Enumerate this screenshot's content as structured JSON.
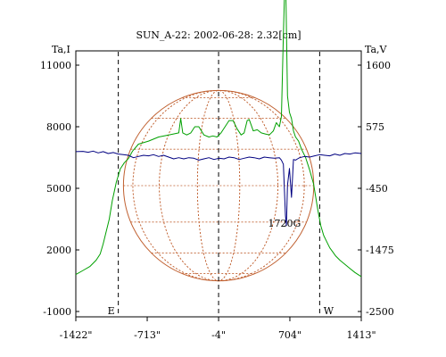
{
  "chart_data": {
    "type": "line",
    "title": "SUN_A-22: 2002-06-28: 2.32[cm]",
    "left_axis": {
      "label": "Ta,I",
      "range": [
        -1000,
        11000
      ],
      "ticks": [
        11000,
        8000,
        5000,
        2000,
        -1000
      ],
      "tick_labels": [
        "11000",
        "8000",
        "5000",
        "2000",
        "-1000"
      ]
    },
    "right_axis": {
      "label": "Ta,V",
      "range": [
        -2500,
        1600
      ],
      "ticks": [
        1600,
        575,
        -450,
        -1475,
        -2500
      ],
      "tick_labels": [
        "1600",
        "575",
        "-450",
        "-1475",
        "-2500"
      ]
    },
    "x_axis": {
      "range": [
        -1422,
        1413
      ],
      "ticks": [
        -1422,
        -713,
        -4,
        704,
        1413
      ],
      "tick_labels": [
        "-1422\"",
        "-713\"",
        "-4\"",
        "704\"",
        "1413\""
      ]
    },
    "vertical_markers": [
      {
        "x": -1000,
        "label": "E"
      },
      {
        "x": -4,
        "label": ""
      },
      {
        "x": 1000,
        "label": "W"
      }
    ],
    "disk": {
      "center_x": -4,
      "radius_arcsec": 945
    },
    "annotations": [
      {
        "text": "1720G",
        "x": 650,
        "y": 3300
      }
    ],
    "series": [
      {
        "axis": "left",
        "color": "#00a000",
        "x": [
          -1422,
          -1350,
          -1280,
          -1220,
          -1180,
          -1150,
          -1120,
          -1090,
          -1060,
          -1020,
          -980,
          -940,
          -900,
          -860,
          -800,
          -700,
          -600,
          -500,
          -400,
          -380,
          -360,
          -320,
          -280,
          -240,
          -200,
          -150,
          -100,
          -60,
          -20,
          20,
          60,
          100,
          140,
          180,
          220,
          250,
          280,
          300,
          340,
          380,
          420,
          460,
          500,
          540,
          570,
          600,
          620,
          640,
          655,
          665,
          680,
          700,
          720,
          740,
          760,
          790,
          820,
          860,
          900,
          940,
          980,
          1010,
          1040,
          1070,
          1100,
          1130,
          1160,
          1200,
          1250,
          1300,
          1350,
          1413
        ],
        "y": [
          800,
          1000,
          1200,
          1500,
          1800,
          2300,
          2900,
          3500,
          4400,
          5300,
          5950,
          6250,
          6450,
          6800,
          7150,
          7300,
          7500,
          7600,
          7700,
          8400,
          7700,
          7600,
          7700,
          8000,
          8000,
          7600,
          7500,
          7550,
          7500,
          7700,
          8000,
          8300,
          8300,
          7900,
          7600,
          7700,
          8300,
          8350,
          7800,
          7850,
          7700,
          7650,
          7600,
          7800,
          8200,
          8000,
          8500,
          12500,
          15200,
          14200,
          9500,
          8700,
          8400,
          7800,
          7500,
          7300,
          6900,
          6500,
          5900,
          5200,
          4000,
          3200,
          2700,
          2400,
          2100,
          1900,
          1700,
          1500,
          1300,
          1100,
          900,
          700
        ]
      },
      {
        "axis": "right",
        "color": "#000080",
        "x": [
          -1422,
          -1350,
          -1300,
          -1250,
          -1200,
          -1150,
          -1100,
          -1050,
          -1000,
          -950,
          -900,
          -850,
          -800,
          -750,
          -700,
          -650,
          -600,
          -550,
          -500,
          -450,
          -400,
          -350,
          -300,
          -250,
          -200,
          -150,
          -100,
          -50,
          0,
          50,
          100,
          150,
          200,
          250,
          300,
          350,
          400,
          450,
          500,
          550,
          600,
          620,
          640,
          660,
          670,
          680,
          700,
          720,
          740,
          760,
          780,
          800,
          850,
          900,
          950,
          1000,
          1050,
          1100,
          1150,
          1200,
          1250,
          1300,
          1350,
          1413
        ],
        "y": [
          160,
          165,
          150,
          170,
          140,
          160,
          130,
          145,
          120,
          110,
          100,
          60,
          80,
          100,
          90,
          110,
          80,
          100,
          70,
          40,
          60,
          40,
          60,
          50,
          20,
          40,
          60,
          30,
          50,
          40,
          70,
          60,
          30,
          50,
          70,
          60,
          40,
          70,
          60,
          50,
          60,
          20,
          -50,
          -900,
          -1070,
          -400,
          -120,
          -600,
          30,
          20,
          40,
          60,
          80,
          70,
          90,
          110,
          100,
          90,
          120,
          100,
          130,
          120,
          140,
          130
        ]
      }
    ]
  }
}
